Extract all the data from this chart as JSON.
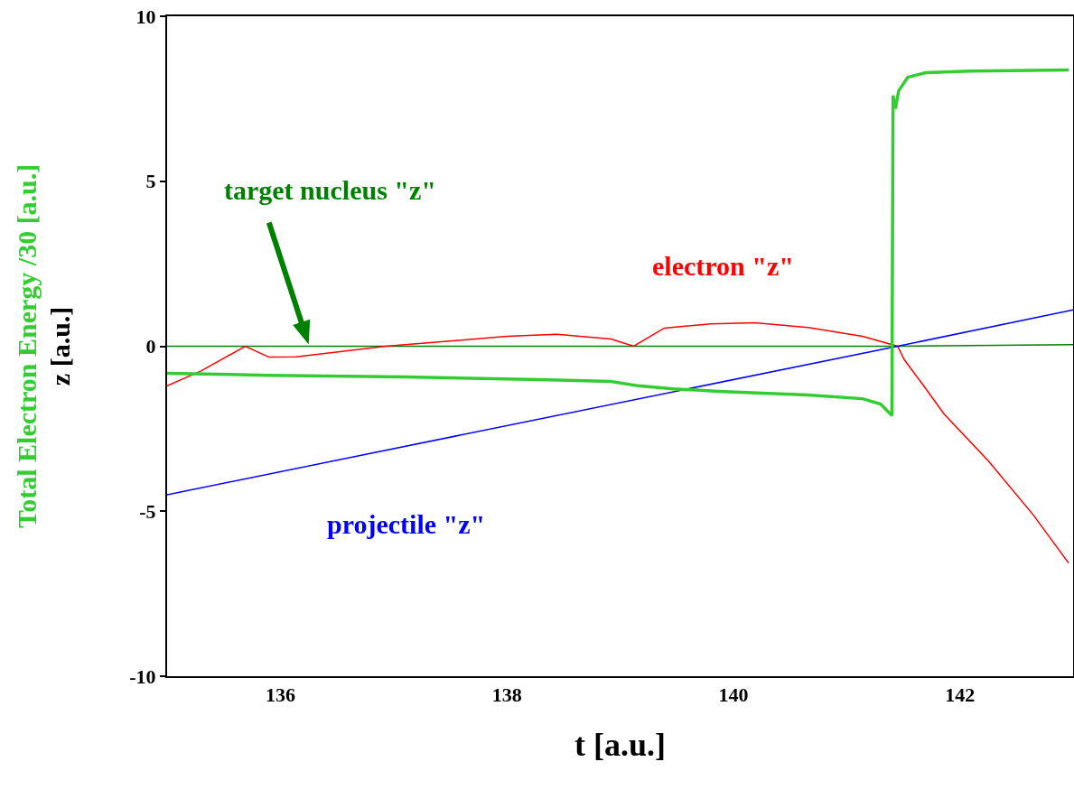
{
  "chart_data": {
    "type": "line",
    "xlabel": "t [a.u.]",
    "ylabel": "z [a.u.]",
    "annotations": [
      "Total Electron Energy /30 [a.u.]"
    ],
    "xlim": [
      135,
      143
    ],
    "xticks": [
      136,
      138,
      140,
      142
    ],
    "ylim": [
      -10,
      10
    ],
    "yticks": [
      -10,
      -5,
      0,
      5,
      10
    ],
    "grid": false,
    "legend": false,
    "series": [
      {
        "name": "target nucleus \"z\"",
        "color": "#008000",
        "x": [
          135,
          141.45,
          143
        ],
        "values": [
          0,
          0,
          0.05
        ]
      },
      {
        "name": "electron \"z\"",
        "color": "#ff0000",
        "x": [
          135,
          135.3,
          135.69,
          135.9,
          136.14,
          136.93,
          138,
          138.44,
          138.92,
          139.12,
          139.39,
          139.8,
          140.19,
          140.66,
          141.14,
          141.45,
          141.51,
          141.67,
          141.86,
          142.25,
          142.65,
          142.96
        ],
        "values": [
          -1.2,
          -0.75,
          0,
          -0.33,
          -0.32,
          0,
          0.3,
          0.36,
          0.22,
          0,
          0.55,
          0.68,
          0.71,
          0.57,
          0.3,
          0,
          -0.41,
          -1.15,
          -2.05,
          -3.47,
          -5.12,
          -6.57
        ]
      },
      {
        "name": "projectile \"z\"",
        "color": "#0000ff",
        "x": [
          135,
          141.45,
          143
        ],
        "values": [
          -4.5,
          0,
          1.1
        ]
      },
      {
        "color": "#33cc33",
        "x": [
          135,
          135.9,
          137.1,
          138.3,
          138.92,
          139.16,
          139.47,
          139.87,
          140.66,
          141.14,
          141.3,
          141.4,
          141.41,
          141.43,
          141.46,
          141.54,
          141.7,
          142.09,
          142.96
        ],
        "values": [
          -0.82,
          -0.88,
          -0.93,
          -1.01,
          -1.07,
          -1.2,
          -1.29,
          -1.37,
          -1.48,
          -1.59,
          -1.75,
          -2.1,
          7.6,
          7.2,
          7.74,
          8.15,
          8.29,
          8.34,
          8.37
        ]
      }
    ]
  }
}
